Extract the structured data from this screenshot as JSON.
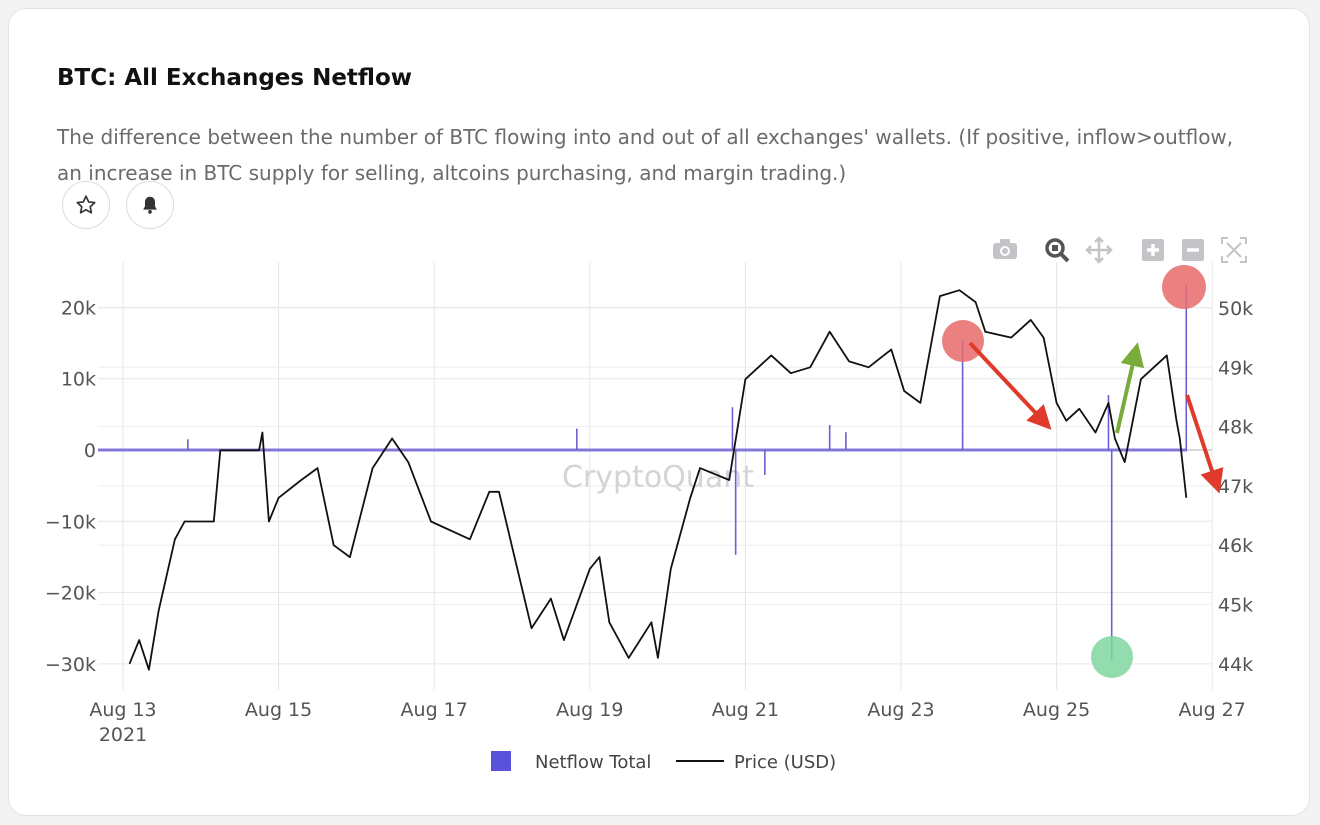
{
  "header": {
    "title": "BTC: All Exchanges Netflow",
    "description": "The difference between the number of BTC flowing into and out of all exchanges' wallets. (If positive, inflow>outflow, an increase in BTC supply for selling, altcoins purchasing, and margin trading.)",
    "buttons": [
      {
        "icon": "star-icon"
      },
      {
        "icon": "bell-icon"
      }
    ]
  },
  "toolbar": [
    "camera-icon",
    "zoom-icon",
    "pan-icon",
    "zoom-in-icon",
    "zoom-out-icon",
    "autoscale-icon"
  ],
  "watermark": "CryptoQuant",
  "colors": {
    "netflow": "#6b5fd6",
    "price": "#111111",
    "red_marker": "#e86a6a",
    "green_marker": "#7fd6a0",
    "red_arrow": "#e03a2c",
    "green_arrow": "#7aac3c"
  },
  "chart_data": {
    "type": "line",
    "title": "BTC: All Exchanges Netflow",
    "x_ticks": [
      "Aug 13",
      "Aug 15",
      "Aug 17",
      "Aug 19",
      "Aug 21",
      "Aug 23",
      "Aug 25",
      "Aug 27"
    ],
    "x_year_label": "2021",
    "x_range": [
      "2021-08-13 00:00",
      "2021-08-27 00:00"
    ],
    "y_left": {
      "ticks": [
        "20k",
        "10k",
        "0",
        "−10k",
        "−20k",
        "−30k"
      ],
      "tick_values": [
        20000,
        10000,
        0,
        -10000,
        -20000,
        -30000
      ]
    },
    "y_right": {
      "ticks": [
        "50k",
        "49k",
        "48k",
        "47k",
        "46k",
        "45k",
        "44k"
      ],
      "tick_values": [
        50000,
        49000,
        48000,
        47000,
        46000,
        45000,
        44000
      ]
    },
    "grid": true,
    "legend_placement": "bottom",
    "series": [
      {
        "name": "Netflow Total",
        "axis": "left",
        "type": "bar",
        "points": [
          [
            "2021-08-13 20:00",
            1500
          ],
          [
            "2021-08-18 20:00",
            3000
          ],
          [
            "2021-08-20 20:00",
            6000
          ],
          [
            "2021-08-20 21:00",
            -14700
          ],
          [
            "2021-08-21 06:00",
            -3500
          ],
          [
            "2021-08-22 02:00",
            3500
          ],
          [
            "2021-08-22 07:00",
            2500
          ],
          [
            "2021-08-23 19:00",
            15400
          ],
          [
            "2021-08-25 16:00",
            7700
          ],
          [
            "2021-08-25 17:00",
            -29500
          ],
          [
            "2021-08-26 16:00",
            23100
          ]
        ]
      },
      {
        "name": "Price (USD)",
        "axis": "right",
        "type": "line",
        "points": [
          [
            "2021-08-13 02:00",
            44000
          ],
          [
            "2021-08-13 05:00",
            44400
          ],
          [
            "2021-08-13 08:00",
            43900
          ],
          [
            "2021-08-13 11:00",
            44900
          ],
          [
            "2021-08-13 16:00",
            46100
          ],
          [
            "2021-08-13 19:00",
            46400
          ],
          [
            "2021-08-14 04:00",
            46400
          ],
          [
            "2021-08-14 06:00",
            47600
          ],
          [
            "2021-08-14 18:00",
            47600
          ],
          [
            "2021-08-14 19:00",
            47900
          ],
          [
            "2021-08-14 21:00",
            46400
          ],
          [
            "2021-08-15 00:00",
            46800
          ],
          [
            "2021-08-15 07:00",
            47100
          ],
          [
            "2021-08-15 12:00",
            47300
          ],
          [
            "2021-08-15 17:00",
            46000
          ],
          [
            "2021-08-15 22:00",
            45800
          ],
          [
            "2021-08-16 05:00",
            47300
          ],
          [
            "2021-08-16 11:00",
            47800
          ],
          [
            "2021-08-16 16:00",
            47400
          ],
          [
            "2021-08-16 23:00",
            46400
          ],
          [
            "2021-08-17 11:00",
            46100
          ],
          [
            "2021-08-17 17:00",
            46900
          ],
          [
            "2021-08-17 20:00",
            46900
          ],
          [
            "2021-08-18 06:00",
            44600
          ],
          [
            "2021-08-18 12:00",
            45100
          ],
          [
            "2021-08-18 16:00",
            44400
          ],
          [
            "2021-08-19 00:00",
            45600
          ],
          [
            "2021-08-19 03:00",
            45800
          ],
          [
            "2021-08-19 06:00",
            44700
          ],
          [
            "2021-08-19 12:00",
            44100
          ],
          [
            "2021-08-19 19:00",
            44700
          ],
          [
            "2021-08-19 21:00",
            44100
          ],
          [
            "2021-08-20 01:00",
            45600
          ],
          [
            "2021-08-20 07:00",
            46800
          ],
          [
            "2021-08-20 10:00",
            47300
          ],
          [
            "2021-08-20 19:00",
            47100
          ],
          [
            "2021-08-21 00:00",
            48800
          ],
          [
            "2021-08-21 08:00",
            49200
          ],
          [
            "2021-08-21 14:00",
            48900
          ],
          [
            "2021-08-21 20:00",
            49000
          ],
          [
            "2021-08-22 02:00",
            49600
          ],
          [
            "2021-08-22 08:00",
            49100
          ],
          [
            "2021-08-22 14:00",
            49000
          ],
          [
            "2021-08-22 21:00",
            49300
          ],
          [
            "2021-08-23 01:00",
            48600
          ],
          [
            "2021-08-23 06:00",
            48400
          ],
          [
            "2021-08-23 12:00",
            50200
          ],
          [
            "2021-08-23 18:00",
            50300
          ],
          [
            "2021-08-23 23:00",
            50100
          ],
          [
            "2021-08-24 02:00",
            49600
          ],
          [
            "2021-08-24 10:00",
            49500
          ],
          [
            "2021-08-24 16:00",
            49800
          ],
          [
            "2021-08-24 20:00",
            49500
          ],
          [
            "2021-08-25 00:00",
            48400
          ],
          [
            "2021-08-25 03:00",
            48100
          ],
          [
            "2021-08-25 07:00",
            48300
          ],
          [
            "2021-08-25 12:00",
            47900
          ],
          [
            "2021-08-25 16:00",
            48400
          ],
          [
            "2021-08-25 18:00",
            47800
          ],
          [
            "2021-08-25 21:00",
            47400
          ],
          [
            "2021-08-26 02:00",
            48800
          ],
          [
            "2021-08-26 10:00",
            49200
          ],
          [
            "2021-08-26 13:00",
            48100
          ],
          [
            "2021-08-26 14:00",
            47800
          ],
          [
            "2021-08-26 16:00",
            46800
          ]
        ]
      }
    ]
  }
}
